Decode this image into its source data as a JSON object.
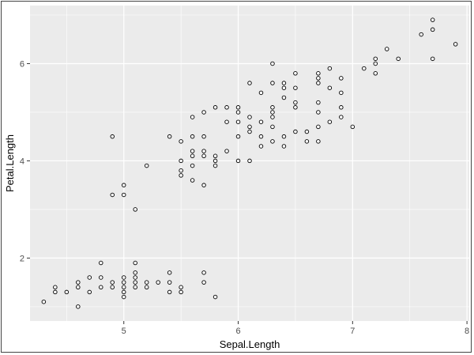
{
  "chart_data": {
    "type": "scatter",
    "title": "",
    "xlabel": "Sepal.Length",
    "ylabel": "Petal.Length",
    "xlim": [
      4.18,
      8.02
    ],
    "ylim": [
      0.705,
      7.195
    ],
    "x_ticks": [
      5,
      6,
      7,
      8
    ],
    "y_ticks": [
      2,
      4,
      6
    ],
    "grid": true,
    "colors": {
      "panel_background": "#ebebeb",
      "grid_major": "#ffffff",
      "point_stroke": "#000000",
      "point_fill": "#ffffff"
    },
    "series": [
      {
        "points": [
          [
            4.3,
            1.1
          ],
          [
            4.4,
            1.3
          ],
          [
            4.4,
            1.4
          ],
          [
            4.5,
            1.3
          ],
          [
            4.6,
            1.0
          ],
          [
            4.6,
            1.4
          ],
          [
            4.6,
            1.5
          ],
          [
            4.7,
            1.3
          ],
          [
            4.7,
            1.6
          ],
          [
            4.8,
            1.4
          ],
          [
            4.8,
            1.6
          ],
          [
            4.8,
            1.9
          ],
          [
            4.9,
            1.4
          ],
          [
            4.9,
            1.5
          ],
          [
            4.9,
            3.3
          ],
          [
            4.9,
            4.5
          ],
          [
            5.0,
            1.2
          ],
          [
            5.0,
            1.3
          ],
          [
            5.0,
            1.4
          ],
          [
            5.0,
            1.5
          ],
          [
            5.0,
            1.6
          ],
          [
            5.0,
            3.3
          ],
          [
            5.0,
            3.5
          ],
          [
            5.1,
            1.4
          ],
          [
            5.1,
            1.5
          ],
          [
            5.1,
            1.6
          ],
          [
            5.1,
            1.7
          ],
          [
            5.1,
            1.9
          ],
          [
            5.1,
            3.0
          ],
          [
            5.2,
            1.4
          ],
          [
            5.2,
            1.5
          ],
          [
            5.2,
            3.9
          ],
          [
            5.3,
            1.5
          ],
          [
            5.4,
            1.3
          ],
          [
            5.4,
            1.5
          ],
          [
            5.4,
            1.7
          ],
          [
            5.4,
            4.5
          ],
          [
            5.5,
            1.3
          ],
          [
            5.5,
            1.4
          ],
          [
            5.5,
            3.7
          ],
          [
            5.5,
            3.8
          ],
          [
            5.5,
            4.0
          ],
          [
            5.5,
            4.4
          ],
          [
            5.6,
            3.6
          ],
          [
            5.6,
            3.9
          ],
          [
            5.6,
            4.1
          ],
          [
            5.6,
            4.2
          ],
          [
            5.6,
            4.5
          ],
          [
            5.6,
            4.9
          ],
          [
            5.7,
            1.5
          ],
          [
            5.7,
            1.7
          ],
          [
            5.7,
            3.5
          ],
          [
            5.7,
            4.1
          ],
          [
            5.7,
            4.2
          ],
          [
            5.7,
            4.5
          ],
          [
            5.7,
            5.0
          ],
          [
            5.8,
            1.2
          ],
          [
            5.8,
            3.9
          ],
          [
            5.8,
            4.0
          ],
          [
            5.8,
            4.1
          ],
          [
            5.8,
            5.1
          ],
          [
            5.9,
            4.2
          ],
          [
            5.9,
            4.8
          ],
          [
            5.9,
            5.1
          ],
          [
            6.0,
            4.0
          ],
          [
            6.0,
            4.5
          ],
          [
            6.0,
            4.8
          ],
          [
            6.0,
            5.0
          ],
          [
            6.0,
            5.1
          ],
          [
            6.1,
            4.0
          ],
          [
            6.1,
            4.6
          ],
          [
            6.1,
            4.7
          ],
          [
            6.1,
            4.9
          ],
          [
            6.1,
            5.6
          ],
          [
            6.2,
            4.3
          ],
          [
            6.2,
            4.5
          ],
          [
            6.2,
            4.8
          ],
          [
            6.2,
            5.4
          ],
          [
            6.3,
            4.4
          ],
          [
            6.3,
            4.7
          ],
          [
            6.3,
            4.9
          ],
          [
            6.3,
            5.0
          ],
          [
            6.3,
            5.1
          ],
          [
            6.3,
            5.6
          ],
          [
            6.3,
            6.0
          ],
          [
            6.4,
            4.3
          ],
          [
            6.4,
            4.5
          ],
          [
            6.4,
            5.3
          ],
          [
            6.4,
            5.5
          ],
          [
            6.4,
            5.6
          ],
          [
            6.5,
            4.6
          ],
          [
            6.5,
            5.1
          ],
          [
            6.5,
            5.2
          ],
          [
            6.5,
            5.5
          ],
          [
            6.5,
            5.8
          ],
          [
            6.6,
            4.4
          ],
          [
            6.6,
            4.6
          ],
          [
            6.7,
            4.4
          ],
          [
            6.7,
            4.7
          ],
          [
            6.7,
            5.0
          ],
          [
            6.7,
            5.2
          ],
          [
            6.7,
            5.6
          ],
          [
            6.7,
            5.7
          ],
          [
            6.7,
            5.8
          ],
          [
            6.8,
            4.8
          ],
          [
            6.8,
            5.5
          ],
          [
            6.8,
            5.9
          ],
          [
            6.9,
            4.9
          ],
          [
            6.9,
            5.1
          ],
          [
            6.9,
            5.4
          ],
          [
            6.9,
            5.7
          ],
          [
            7.0,
            4.7
          ],
          [
            7.1,
            5.9
          ],
          [
            7.2,
            5.8
          ],
          [
            7.2,
            6.0
          ],
          [
            7.2,
            6.1
          ],
          [
            7.3,
            6.3
          ],
          [
            7.4,
            6.1
          ],
          [
            7.6,
            6.6
          ],
          [
            7.7,
            6.1
          ],
          [
            7.7,
            6.7
          ],
          [
            7.7,
            6.9
          ],
          [
            7.9,
            6.4
          ]
        ]
      }
    ]
  }
}
